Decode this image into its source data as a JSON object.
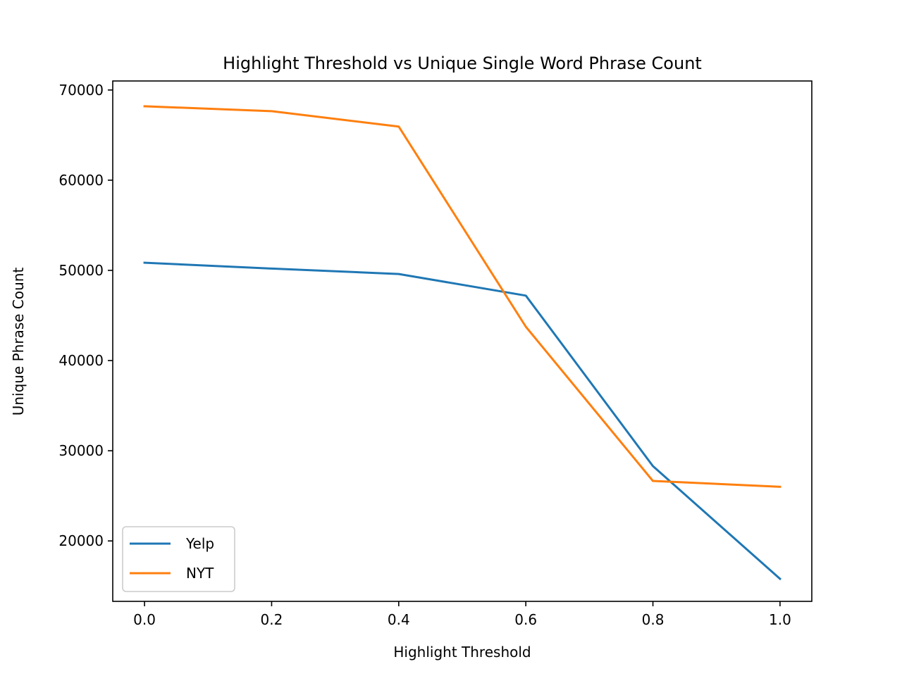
{
  "chart_data": {
    "type": "line",
    "title": "Highlight Threshold vs Unique Single Word Phrase Count",
    "xlabel": "Highlight Threshold",
    "ylabel": "Unique Phrase Count",
    "x": [
      0.0,
      0.2,
      0.4,
      0.6,
      0.8,
      1.0
    ],
    "xticks": [
      "0.0",
      "0.2",
      "0.4",
      "0.6",
      "0.8",
      "1.0"
    ],
    "yticks": [
      "20000",
      "30000",
      "40000",
      "50000",
      "60000",
      "70000"
    ],
    "xlim": [
      -0.05,
      1.05
    ],
    "ylim": [
      13300,
      71000
    ],
    "grid": false,
    "legend_position": "lower-left",
    "series": [
      {
        "name": "Yelp",
        "color": "#1f77b4",
        "values": [
          50850,
          50200,
          49600,
          47200,
          28300,
          15800
        ]
      },
      {
        "name": "NYT",
        "color": "#ff7f0e",
        "values": [
          68200,
          67650,
          65950,
          43750,
          26650,
          26000
        ]
      }
    ]
  }
}
